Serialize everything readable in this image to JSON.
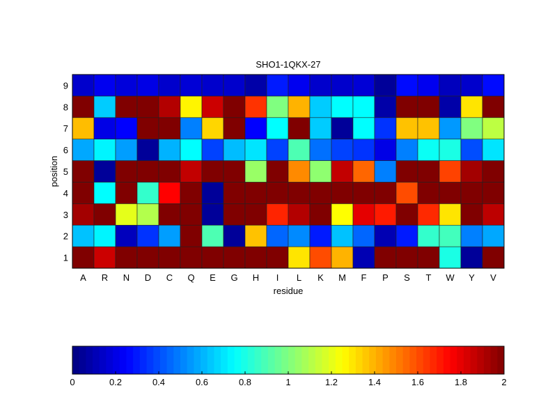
{
  "chart_data": {
    "type": "heatmap",
    "title": "SHO1-1QKX-27",
    "xlabel": "residue",
    "ylabel": "position",
    "x_categories": [
      "A",
      "R",
      "N",
      "D",
      "C",
      "Q",
      "E",
      "G",
      "H",
      "I",
      "L",
      "K",
      "M",
      "F",
      "P",
      "S",
      "T",
      "W",
      "Y",
      "V"
    ],
    "y_categories": [
      "1",
      "2",
      "3",
      "4",
      "5",
      "6",
      "7",
      "8",
      "9"
    ],
    "colormap": "jet",
    "clim": [
      0,
      2
    ],
    "colorbar": {
      "placement": "bottom",
      "ticks": [
        "0",
        "0.2",
        "0.4",
        "0.6",
        "0.8",
        "1",
        "1.2",
        "1.4",
        "1.6",
        "1.8",
        "2"
      ]
    },
    "values": [
      [
        2.0,
        1.85,
        2.0,
        2.0,
        2.0,
        2.0,
        2.0,
        2.0,
        2.0,
        2.0,
        1.3,
        1.6,
        1.4,
        0.1,
        2.0,
        2.0,
        2.0,
        0.8,
        0.05,
        2.0
      ],
      [
        0.63,
        0.73,
        0.12,
        0.35,
        0.56,
        2.0,
        0.9,
        0.05,
        1.37,
        0.45,
        0.52,
        0.3,
        0.63,
        0.45,
        0.1,
        0.3,
        0.85,
        0.88,
        0.5,
        0.58
      ],
      [
        1.93,
        2.0,
        1.2,
        1.1,
        2.0,
        2.0,
        0.05,
        2.0,
        2.0,
        1.68,
        1.9,
        2.0,
        1.25,
        1.8,
        1.7,
        2.0,
        1.67,
        1.3,
        2.0,
        1.88
      ],
      [
        2.0,
        0.75,
        2.0,
        0.85,
        1.75,
        2.0,
        0.05,
        2.0,
        2.0,
        2.0,
        2.0,
        2.0,
        2.0,
        2.0,
        2.0,
        1.6,
        2.0,
        2.0,
        2.0,
        2.0
      ],
      [
        2.0,
        0.05,
        2.0,
        2.0,
        2.0,
        1.87,
        2.0,
        2.0,
        1.05,
        2.0,
        1.48,
        1.03,
        1.87,
        1.55,
        0.5,
        2.0,
        2.0,
        1.62,
        1.93,
        2.0
      ],
      [
        0.58,
        0.73,
        0.56,
        0.05,
        0.6,
        0.75,
        0.38,
        0.62,
        0.7,
        0.38,
        0.9,
        0.47,
        0.38,
        0.35,
        0.2,
        0.5,
        0.77,
        0.8,
        0.4,
        0.7
      ],
      [
        1.38,
        0.2,
        0.25,
        2.0,
        2.0,
        0.5,
        1.33,
        2.0,
        0.25,
        0.75,
        2.0,
        0.65,
        0.05,
        0.75,
        0.35,
        1.37,
        1.37,
        0.55,
        1.0,
        1.12
      ],
      [
        2.0,
        0.65,
        2.0,
        2.0,
        1.9,
        1.27,
        1.85,
        2.0,
        1.65,
        1.0,
        1.4,
        0.65,
        0.75,
        0.75,
        0.08,
        2.0,
        2.0,
        0.08,
        1.3,
        2.0
      ],
      [
        0.15,
        0.22,
        0.18,
        0.2,
        0.15,
        0.17,
        0.15,
        0.15,
        0.08,
        0.3,
        0.22,
        0.15,
        0.15,
        0.17,
        0.05,
        0.27,
        0.22,
        0.12,
        0.15,
        0.27
      ]
    ]
  }
}
